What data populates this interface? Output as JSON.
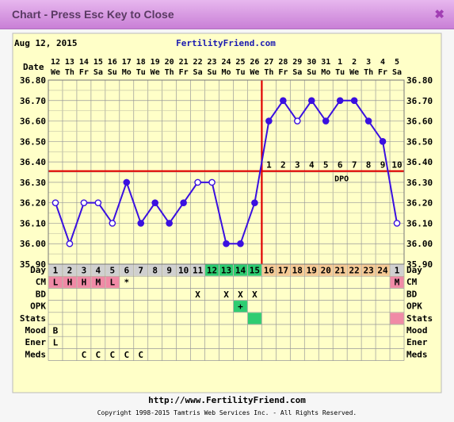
{
  "window": {
    "title": "Chart - Press Esc Key to Close",
    "close_icon": "close-icon"
  },
  "header": {
    "date": "Aug 12, 2015",
    "site": "FertilityFriend.com"
  },
  "footer": {
    "url": "http://www.FertilityFriend.com",
    "copyright": "Copyright 1998-2015 Tamtris Web Services Inc. - All Rights Reserved."
  },
  "colors": {
    "background": "#ffffc8",
    "temp_line": "#3a10e0",
    "coverline": "#e00000",
    "fertile": "#2ecc71",
    "luteal": "#f5c995",
    "follicular": "#d0d0d0",
    "cm": "#f08aa6",
    "stats": "#f08aa6"
  },
  "chart_data": {
    "type": "line",
    "date_row": {
      "label": "Date",
      "dates": [
        "12",
        "13",
        "14",
        "15",
        "16",
        "17",
        "18",
        "19",
        "20",
        "21",
        "22",
        "23",
        "24",
        "25",
        "26",
        "27",
        "28",
        "29",
        "30",
        "31",
        "1",
        "2",
        "3",
        "4",
        "5"
      ],
      "weekdays": [
        "We",
        "Th",
        "Fr",
        "Sa",
        "Su",
        "Mo",
        "Tu",
        "We",
        "Th",
        "Fr",
        "Sa",
        "Su",
        "Mo",
        "Tu",
        "We",
        "Th",
        "Fr",
        "Sa",
        "Su",
        "Mo",
        "Tu",
        "We",
        "Th",
        "Fr",
        "Sa"
      ]
    },
    "y_ticks": [
      "36.80",
      "36.70",
      "36.60",
      "36.50",
      "36.40",
      "36.30",
      "36.20",
      "36.10",
      "36.00",
      "35.90"
    ],
    "ylim": [
      35.9,
      36.8
    ],
    "temperatures": [
      36.2,
      36.0,
      36.2,
      36.2,
      36.1,
      36.3,
      36.1,
      36.2,
      36.1,
      36.2,
      36.3,
      36.3,
      36.0,
      36.0,
      36.2,
      36.6,
      36.7,
      36.6,
      36.7,
      36.6,
      36.7,
      36.7,
      36.6,
      36.5,
      36.1
    ],
    "open_markers": [
      0,
      1,
      2,
      3,
      4,
      10,
      11,
      17,
      24
    ],
    "coverline": 36.355,
    "ovulation_day_index": 14,
    "dpo_numbers": [
      "1",
      "2",
      "3",
      "4",
      "5",
      "6",
      "7",
      "8",
      "9",
      "10"
    ],
    "dpo_label": "DPO",
    "cycle_days": [
      "1",
      "2",
      "3",
      "4",
      "5",
      "6",
      "7",
      "8",
      "9",
      "10",
      "11",
      "12",
      "13",
      "14",
      "15",
      "16",
      "17",
      "18",
      "19",
      "20",
      "21",
      "22",
      "23",
      "24",
      "1"
    ],
    "rows": [
      {
        "label": "Day"
      },
      {
        "label": "CM",
        "values": {
          "0": "L",
          "1": "H",
          "2": "H",
          "3": "M",
          "4": "L",
          "5": "*",
          "24": "M"
        }
      },
      {
        "label": "BD",
        "values": {
          "10": "X",
          "12": "X",
          "13": "X",
          "14": "X"
        }
      },
      {
        "label": "OPK",
        "values": {
          "13": "+"
        }
      },
      {
        "label": "Stats",
        "values": {}
      },
      {
        "label": "Mood",
        "values": {
          "0": "B"
        }
      },
      {
        "label": "Ener",
        "values": {
          "0": "L"
        }
      },
      {
        "label": "Meds",
        "values": {
          "2": "C",
          "3": "C",
          "4": "C",
          "5": "C",
          "6": "C"
        }
      }
    ]
  }
}
